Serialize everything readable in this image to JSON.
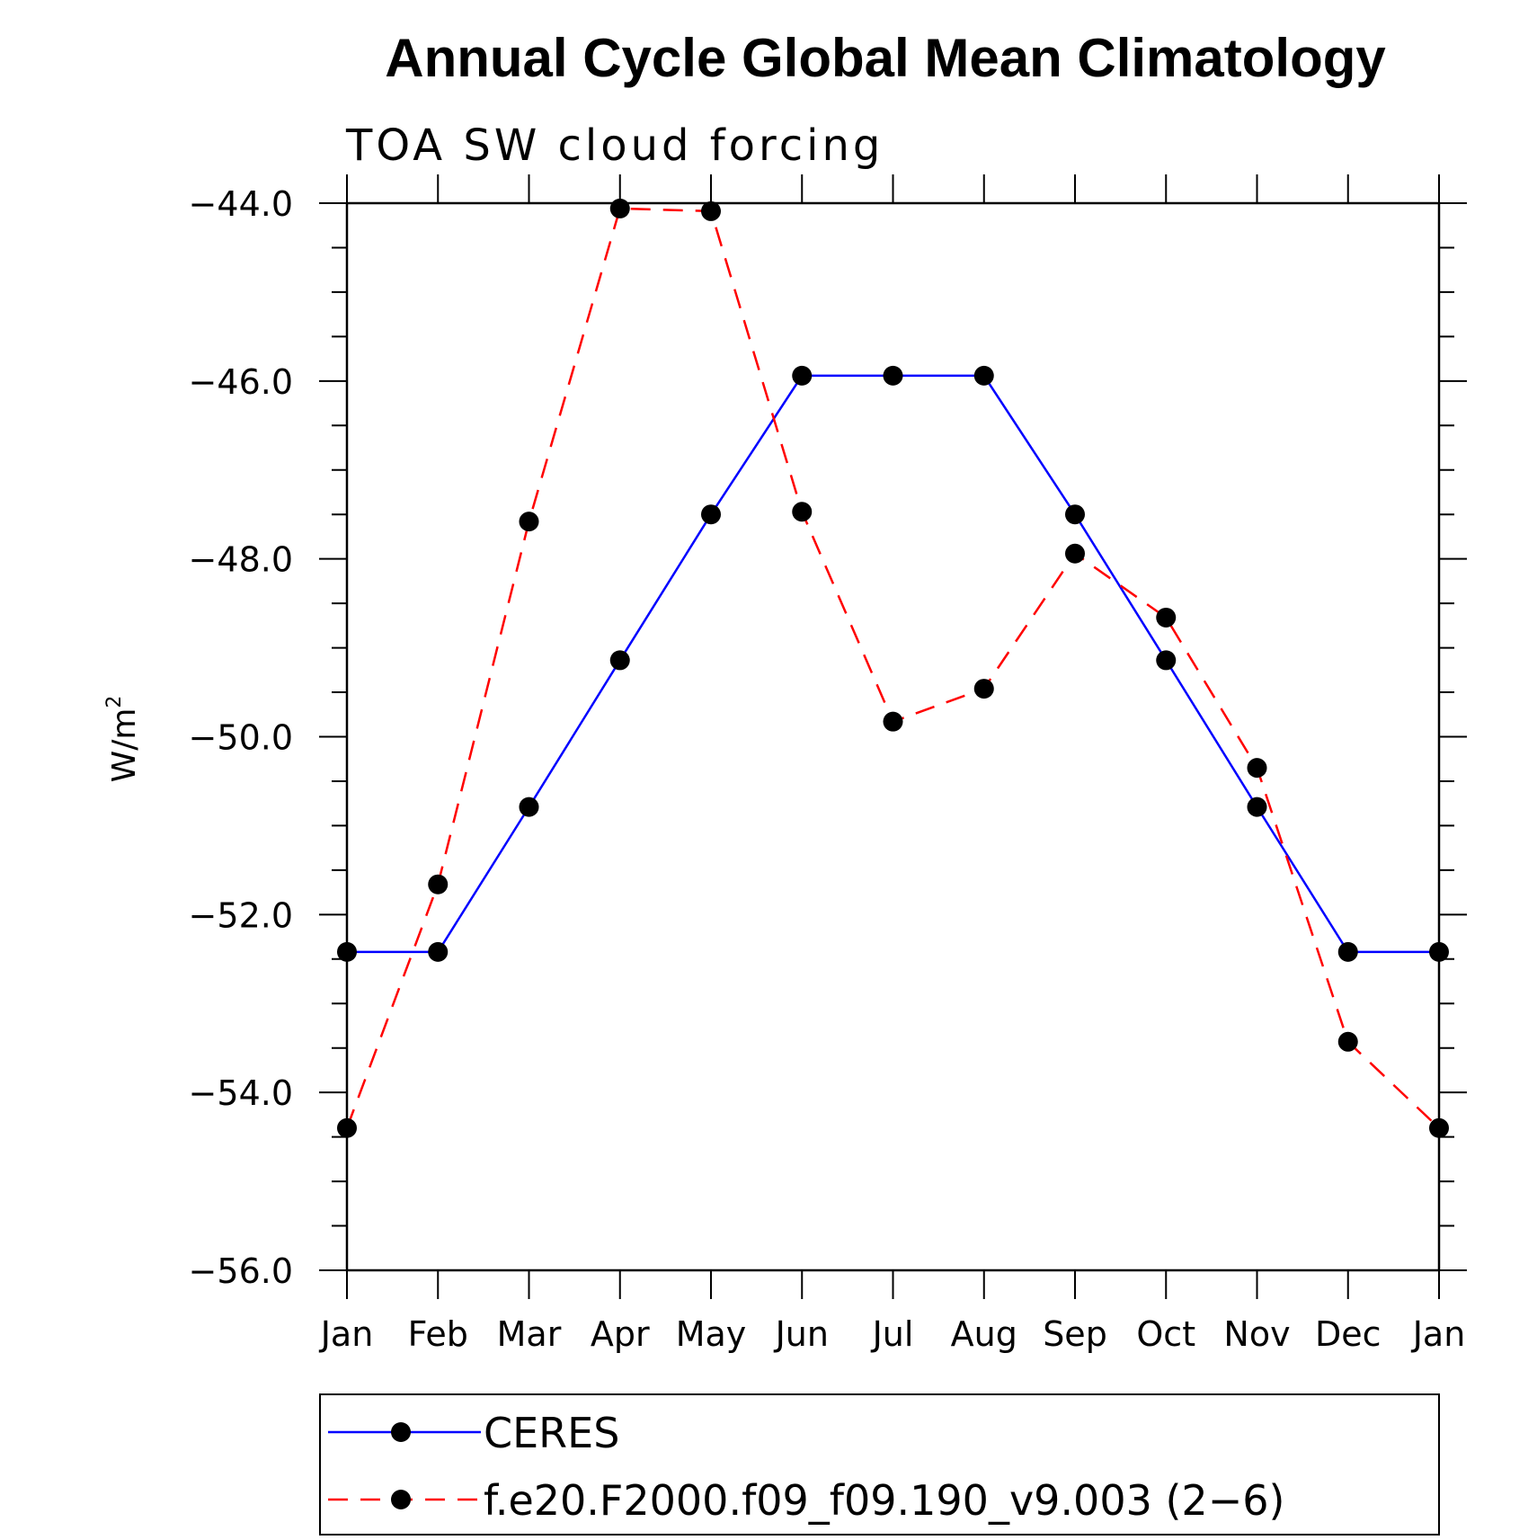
{
  "chart_data": {
    "type": "line",
    "title": "Annual Cycle Global Mean Climatology",
    "subtitle": "TOA SW cloud forcing",
    "ylabel_base": "W/m",
    "ylabel_sup": "2",
    "xlabel": "",
    "categories": [
      "Jan",
      "Feb",
      "Mar",
      "Apr",
      "May",
      "Jun",
      "Jul",
      "Aug",
      "Sep",
      "Oct",
      "Nov",
      "Dec",
      "Jan"
    ],
    "ylim": [
      -56.0,
      -44.0
    ],
    "yticks": [
      -56.0,
      -54.0,
      -52.0,
      -50.0,
      -48.0,
      -46.0,
      -44.0
    ],
    "ytick_labels": [
      "−56.0",
      "−54.0",
      "−52.0",
      "−50.0",
      "−48.0",
      "−46.0",
      "−44.0"
    ],
    "series": [
      {
        "name": "CERES",
        "color": "#0000ff",
        "dash": "solid",
        "values": [
          -52.42,
          -52.42,
          -50.79,
          -49.14,
          -47.5,
          -45.94,
          -45.94,
          -45.94,
          -47.5,
          -49.14,
          -50.79,
          -52.42,
          -52.42
        ]
      },
      {
        "name": "f.e20.F2000.f09_f09.190_v9.003 (2−6)",
        "color": "#ff0000",
        "dash": "dashed",
        "values": [
          -54.4,
          -51.66,
          -47.58,
          -44.06,
          -44.09,
          -47.47,
          -49.83,
          -49.46,
          -47.94,
          -48.66,
          -50.35,
          -53.43,
          -54.4
        ]
      }
    ],
    "grid": false,
    "legend_position": "bottom"
  }
}
